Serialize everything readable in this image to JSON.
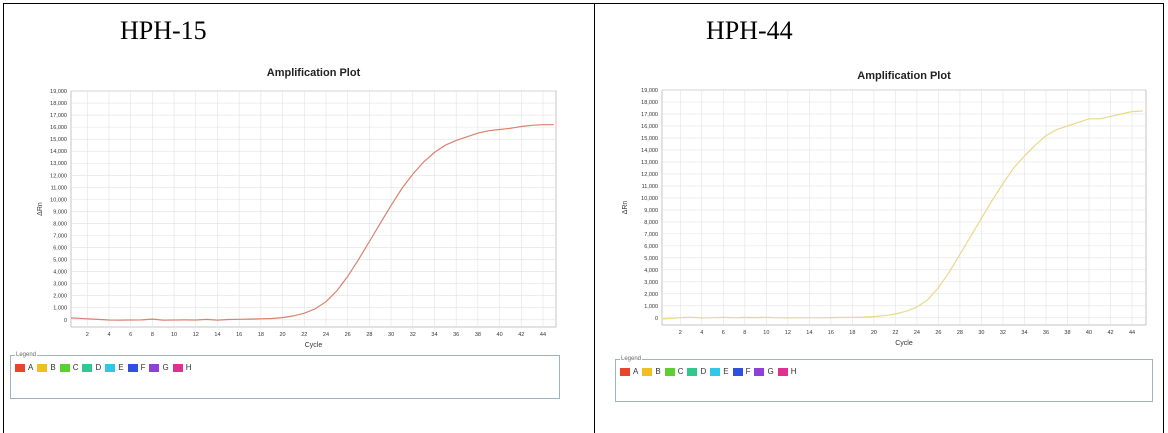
{
  "panels": [
    {
      "label": "HPH-15"
    },
    {
      "label": "HPH-44"
    }
  ],
  "legend": {
    "title": "Legend",
    "items": [
      {
        "label": "A",
        "color": "#e8452c"
      },
      {
        "label": "B",
        "color": "#f0c020"
      },
      {
        "label": "C",
        "color": "#5cd030"
      },
      {
        "label": "D",
        "color": "#30c890"
      },
      {
        "label": "E",
        "color": "#30c8e8"
      },
      {
        "label": "F",
        "color": "#3050e0"
      },
      {
        "label": "G",
        "color": "#9040d8"
      },
      {
        "label": "H",
        "color": "#e03090"
      }
    ]
  },
  "chart_data": [
    {
      "type": "line",
      "title": "Amplification Plot",
      "xlabel": "Cycle",
      "ylabel": "ΔRn",
      "xlim": [
        0.5,
        45.2
      ],
      "ylim": [
        -600,
        19000
      ],
      "xticks": [
        2,
        4,
        6,
        8,
        10,
        12,
        14,
        16,
        18,
        20,
        22,
        24,
        26,
        28,
        30,
        32,
        34,
        36,
        38,
        40,
        42,
        44
      ],
      "yticks": [
        0,
        1000,
        2000,
        3000,
        4000,
        5000,
        6000,
        7000,
        8000,
        9000,
        10000,
        11000,
        12000,
        13000,
        14000,
        15000,
        16000,
        17000,
        18000,
        19000
      ],
      "ytick_labels": [
        "0",
        "1,000",
        "2,000",
        "3,000",
        "4,000",
        "5,000",
        "6,000",
        "7,000",
        "8,000",
        "9,000",
        "10,000",
        "11,000",
        "12,000",
        "13,000",
        "14,000",
        "15,000",
        "16,000",
        "17,000",
        "18,000",
        "19,000"
      ],
      "grid": true,
      "series": [
        {
          "color": "#d9826e",
          "x": [
            0.5,
            1,
            2,
            3,
            4,
            5,
            6,
            7,
            8,
            9,
            10,
            11,
            12,
            13,
            14,
            15,
            16,
            17,
            18,
            19,
            20,
            21,
            22,
            23,
            24,
            25,
            26,
            27,
            28,
            29,
            30,
            31,
            32,
            33,
            34,
            35,
            36,
            37,
            38,
            39,
            40,
            41,
            42,
            43,
            44,
            45
          ],
          "y": [
            150,
            130,
            80,
            30,
            -20,
            -30,
            -20,
            -10,
            60,
            -30,
            -20,
            -10,
            -20,
            30,
            -30,
            20,
            40,
            60,
            80,
            110,
            180,
            320,
            550,
            900,
            1500,
            2400,
            3600,
            5000,
            6500,
            8000,
            9500,
            10900,
            12100,
            13100,
            13900,
            14500,
            14900,
            15200,
            15500,
            15700,
            15800,
            15900,
            16050,
            16150,
            16200,
            16200
          ]
        }
      ]
    },
    {
      "type": "line",
      "title": "Amplification Plot",
      "xlabel": "Cycle",
      "ylabel": "ΔRn",
      "xlim": [
        0.3,
        45.3
      ],
      "ylim": [
        -600,
        19000
      ],
      "xticks": [
        2,
        4,
        6,
        8,
        10,
        12,
        14,
        16,
        18,
        20,
        22,
        24,
        26,
        28,
        30,
        32,
        34,
        36,
        38,
        40,
        42,
        44
      ],
      "yticks": [
        0,
        1000,
        2000,
        3000,
        4000,
        5000,
        6000,
        7000,
        8000,
        9000,
        10000,
        11000,
        12000,
        13000,
        14000,
        15000,
        16000,
        17000,
        18000,
        19000
      ],
      "ytick_labels": [
        "0",
        "1,000",
        "2,000",
        "3,000",
        "4,000",
        "5,000",
        "6,000",
        "7,000",
        "8,000",
        "9,000",
        "10,000",
        "11,000",
        "12,000",
        "13,000",
        "14,000",
        "15,000",
        "16,000",
        "17,000",
        "18,000",
        "19,000"
      ],
      "grid": true,
      "series": [
        {
          "color": "#e8d98a",
          "x": [
            0.3,
            1,
            2,
            3,
            4,
            5,
            6,
            7,
            8,
            9,
            10,
            11,
            12,
            13,
            14,
            15,
            16,
            17,
            18,
            19,
            20,
            21,
            22,
            23,
            24,
            25,
            26,
            27,
            28,
            29,
            30,
            31,
            32,
            33,
            34,
            35,
            36,
            37,
            38,
            39,
            40,
            41,
            42,
            43,
            44,
            45
          ],
          "y": [
            -100,
            -50,
            20,
            50,
            -20,
            10,
            40,
            0,
            30,
            20,
            40,
            0,
            -10,
            0,
            10,
            0,
            20,
            30,
            40,
            60,
            100,
            180,
            320,
            550,
            900,
            1500,
            2500,
            3800,
            5300,
            6800,
            8300,
            9800,
            11200,
            12500,
            13500,
            14400,
            15200,
            15700,
            16000,
            16300,
            16600,
            16600,
            16800,
            17000,
            17200,
            17250
          ]
        }
      ]
    }
  ]
}
